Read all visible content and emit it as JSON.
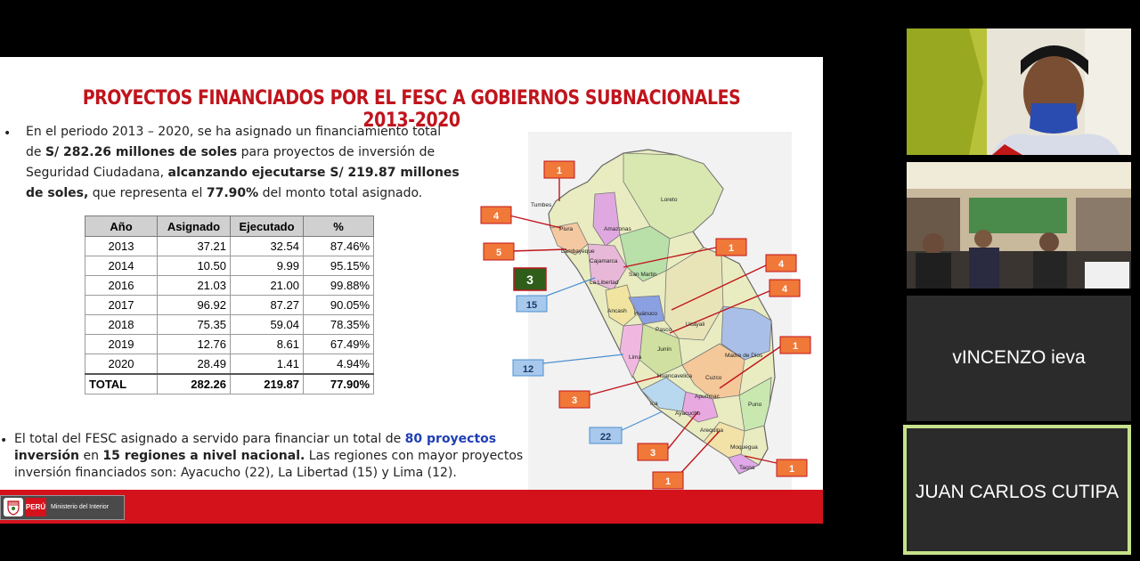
{
  "slide": {
    "title": "PROYECTOS FINANCIADOS POR EL FESC A GOBIERNOS SUBNACIONALES 2013-2020",
    "intro": {
      "bullet": "•",
      "p1": "En el periodo 2013 – 2020, se ha asignado un financiamiento total",
      "p2a": "de ",
      "p2b": "S/ 282.26 millones de soles",
      "p2c": " para proyectos de inversión de",
      "p3a": "Seguridad Ciudadana, ",
      "p3b": "alcanzando ejecutarse S/ 219.87 millones",
      "p4a": "de soles,",
      "p4b": " que representa el ",
      "p4c": "77.90%",
      "p4d": " del monto total asignado."
    },
    "table": {
      "headers": [
        "Año",
        "Asignado",
        "Ejecutado",
        "%"
      ],
      "rows": [
        [
          "2013",
          "37.21",
          "32.54",
          "87.46%"
        ],
        [
          "2014",
          "10.50",
          "9.99",
          "95.15%"
        ],
        [
          "2016",
          "21.03",
          "21.00",
          "99.88%"
        ],
        [
          "2017",
          "96.92",
          "87.27",
          "90.05%"
        ],
        [
          "2018",
          "75.35",
          "59.04",
          "78.35%"
        ],
        [
          "2019",
          "12.76",
          "8.61",
          "67.49%"
        ],
        [
          "2020",
          "28.49",
          "1.41",
          "4.94%"
        ]
      ],
      "total": [
        "TOTAL",
        "282.26",
        "219.87",
        "77.90%"
      ]
    },
    "summary": {
      "bullet": "•",
      "l1a": "El total del FESC asignado a servido para financiar un total de ",
      "l1b": "80 proyectos",
      "l2a": "inversión",
      "l2b": " en ",
      "l2c": "15 regiones a nivel nacional.",
      "l2d": " Las regiones con mayor proyectos",
      "l3": "inversión financiados son: Ayacucho (22), La Libertad (15) y Lima (12)."
    },
    "map": {
      "regions": [
        "Tumbes",
        "Piura",
        "Amazonas",
        "Loreto",
        "Lambayeque",
        "Cajamarca",
        "San Martin",
        "La Libertad",
        "Ancash",
        "Huánuco",
        "Pasco",
        "Ucayali",
        "Junín",
        "Lima",
        "Madre de Dios",
        "Huancavelica",
        "Cuzco",
        "Apurímac",
        "Ica",
        "Ayacucho",
        "Puno",
        "Arequipa",
        "Moquegua",
        "Tacna"
      ],
      "labels": [
        "1",
        "4",
        "5",
        "3",
        "15",
        "1",
        "4",
        "4",
        "1",
        "12",
        "3",
        "22",
        "3",
        "1",
        "1"
      ]
    },
    "footer": {
      "peru": "PERÚ",
      "ministry": "Ministerio del Interior"
    }
  },
  "participants": [
    {
      "name": "vINCENZO ieva"
    },
    {
      "name": "JUAN CARLOS CUTIPA"
    }
  ],
  "colors": {
    "title": "#c0141c",
    "footer": "#d4121c",
    "active_speaker": "#c6e28a",
    "tile": "#2b2b2b"
  }
}
